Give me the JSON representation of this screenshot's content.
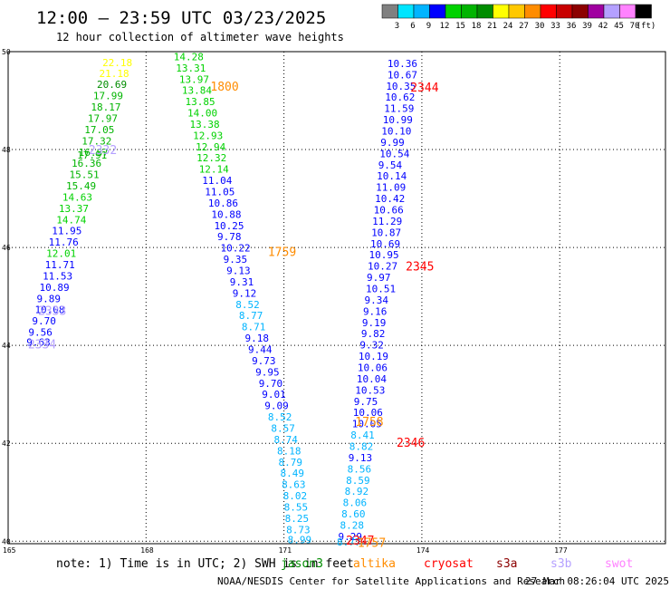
{
  "header": {
    "title": "12:00 – 23:59 UTC 03/23/2025",
    "subtitle": "12 hour collection of altimeter wave heights"
  },
  "colorbar": {
    "labels": [
      "3",
      "6",
      "9",
      "12",
      "15",
      "18",
      "21",
      "24",
      "27",
      "30",
      "33",
      "36",
      "39",
      "42",
      "45",
      "70",
      "(ft)"
    ],
    "colors": [
      "#808080",
      "#00e5ff",
      "#00b4ff",
      "#0000ff",
      "#00d200",
      "#00b400",
      "#008c00",
      "#ffff00",
      "#ffc800",
      "#ff8c00",
      "#ff0000",
      "#c80000",
      "#8c0000",
      "#a000a0",
      "#b4a0ff",
      "#ff82ff",
      "#000000"
    ]
  },
  "footer": {
    "note": "note:  1) Time is in UTC; 2) SWH is in feet",
    "legend": [
      {
        "name": "jason3",
        "color": "#008c00"
      },
      {
        "name": "altika",
        "color": "#ff8c00"
      },
      {
        "name": "cryosat",
        "color": "#ff0000"
      },
      {
        "name": "s3a",
        "color": "#8c0000"
      },
      {
        "name": "s3b",
        "color": "#b4a0ff"
      },
      {
        "name": "swot",
        "color": "#ff82ff"
      }
    ],
    "credit": "NOAA/NESDIS Center for Satellite Applications and Research",
    "timestamp": "27 Mar 08:26:04 UTC 2025"
  },
  "chart_data": {
    "type": "scatter",
    "title": "12:00 – 23:59 UTC 03/23/2025",
    "subtitle": "12 hour collection of altimeter wave heights",
    "xlim": [
      165,
      179.3
    ],
    "ylim": [
      39.95,
      50
    ],
    "x_ticks": [
      165,
      168,
      171,
      174,
      177
    ],
    "y_ticks": [
      40,
      42,
      44,
      46,
      48,
      50
    ],
    "grid": true,
    "legend": "bottom",
    "points": [
      {
        "x": 167.05,
        "y": 49.78,
        "v": "22.18",
        "c": "#ffff00"
      },
      {
        "x": 166.98,
        "y": 49.56,
        "v": "21.18",
        "c": "#ffff00"
      },
      {
        "x": 166.93,
        "y": 49.33,
        "v": "20.69",
        "c": "#008c00"
      },
      {
        "x": 166.85,
        "y": 49.1,
        "v": "17.99",
        "c": "#00b400"
      },
      {
        "x": 166.8,
        "y": 48.87,
        "v": "18.17",
        "c": "#00b400"
      },
      {
        "x": 166.73,
        "y": 48.64,
        "v": "17.97",
        "c": "#00b400"
      },
      {
        "x": 166.66,
        "y": 48.41,
        "v": "17.05",
        "c": "#00b400"
      },
      {
        "x": 166.6,
        "y": 48.18,
        "v": "17.32",
        "c": "#00b400"
      },
      {
        "x": 166.53,
        "y": 47.95,
        "v": "16.87",
        "c": "#00b400"
      },
      {
        "x": 166.5,
        "y": 47.89,
        "v": "17.91",
        "c": "#00b400"
      },
      {
        "x": 166.38,
        "y": 47.72,
        "v": "16.36",
        "c": "#00b400"
      },
      {
        "x": 166.33,
        "y": 47.49,
        "v": "15.51",
        "c": "#00b400"
      },
      {
        "x": 166.26,
        "y": 47.26,
        "v": "15.49",
        "c": "#00b400"
      },
      {
        "x": 166.18,
        "y": 47.03,
        "v": "14.63",
        "c": "#00d200"
      },
      {
        "x": 166.1,
        "y": 46.8,
        "v": "13.37",
        "c": "#00d200"
      },
      {
        "x": 166.05,
        "y": 46.57,
        "v": "14.74",
        "c": "#00d200"
      },
      {
        "x": 165.95,
        "y": 46.34,
        "v": "11.95",
        "c": "#0000ff"
      },
      {
        "x": 165.88,
        "y": 46.11,
        "v": "11.76",
        "c": "#0000ff"
      },
      {
        "x": 165.83,
        "y": 45.88,
        "v": "12.01",
        "c": "#00d200"
      },
      {
        "x": 165.8,
        "y": 45.65,
        "v": "11.71",
        "c": "#0000ff"
      },
      {
        "x": 165.75,
        "y": 45.42,
        "v": "11.53",
        "c": "#0000ff"
      },
      {
        "x": 165.68,
        "y": 45.19,
        "v": "10.89",
        "c": "#0000ff"
      },
      {
        "x": 165.62,
        "y": 44.96,
        "v": "9.89",
        "c": "#0000ff"
      },
      {
        "x": 165.58,
        "y": 44.73,
        "v": "10.08",
        "c": "#0000ff"
      },
      {
        "x": 165.52,
        "y": 44.5,
        "v": "9.70",
        "c": "#0000ff"
      },
      {
        "x": 165.44,
        "y": 44.27,
        "v": "9.56",
        "c": "#0000ff"
      },
      {
        "x": 165.4,
        "y": 44.07,
        "v": "9.63",
        "c": "#0000ff"
      },
      {
        "x": 168.6,
        "y": 49.9,
        "v": "14.28",
        "c": "#00d200"
      },
      {
        "x": 168.65,
        "y": 49.67,
        "v": "13.31",
        "c": "#00d200"
      },
      {
        "x": 168.72,
        "y": 49.44,
        "v": "13.97",
        "c": "#00d200"
      },
      {
        "x": 168.78,
        "y": 49.21,
        "v": "13.84",
        "c": "#00d200"
      },
      {
        "x": 168.85,
        "y": 48.98,
        "v": "13.85",
        "c": "#00d200"
      },
      {
        "x": 168.9,
        "y": 48.75,
        "v": "14.00",
        "c": "#00d200"
      },
      {
        "x": 168.95,
        "y": 48.52,
        "v": "13.38",
        "c": "#00d200"
      },
      {
        "x": 169.02,
        "y": 48.29,
        "v": "12.93",
        "c": "#00d200"
      },
      {
        "x": 169.08,
        "y": 48.06,
        "v": "12.94",
        "c": "#00d200"
      },
      {
        "x": 169.1,
        "y": 47.83,
        "v": "12.32",
        "c": "#00d200"
      },
      {
        "x": 169.15,
        "y": 47.6,
        "v": "12.14",
        "c": "#00d200"
      },
      {
        "x": 169.22,
        "y": 47.37,
        "v": "11.04",
        "c": "#0000ff"
      },
      {
        "x": 169.28,
        "y": 47.14,
        "v": "11.05",
        "c": "#0000ff"
      },
      {
        "x": 169.35,
        "y": 46.91,
        "v": "10.86",
        "c": "#0000ff"
      },
      {
        "x": 169.42,
        "y": 46.68,
        "v": "10.88",
        "c": "#0000ff"
      },
      {
        "x": 169.48,
        "y": 46.45,
        "v": "10.25",
        "c": "#0000ff"
      },
      {
        "x": 169.55,
        "y": 46.22,
        "v": "9.78",
        "c": "#0000ff"
      },
      {
        "x": 169.62,
        "y": 45.99,
        "v": "10.22",
        "c": "#0000ff"
      },
      {
        "x": 169.68,
        "y": 45.76,
        "v": "9.35",
        "c": "#0000ff"
      },
      {
        "x": 169.75,
        "y": 45.53,
        "v": "9.13",
        "c": "#0000ff"
      },
      {
        "x": 169.82,
        "y": 45.3,
        "v": "9.31",
        "c": "#0000ff"
      },
      {
        "x": 169.88,
        "y": 45.07,
        "v": "9.12",
        "c": "#0000ff"
      },
      {
        "x": 169.95,
        "y": 44.84,
        "v": "8.52",
        "c": "#00b4ff"
      },
      {
        "x": 170.02,
        "y": 44.61,
        "v": "8.77",
        "c": "#00b4ff"
      },
      {
        "x": 170.08,
        "y": 44.38,
        "v": "8.71",
        "c": "#00b4ff"
      },
      {
        "x": 170.15,
        "y": 44.15,
        "v": "9.18",
        "c": "#0000ff"
      },
      {
        "x": 170.22,
        "y": 43.92,
        "v": "9.44",
        "c": "#0000ff"
      },
      {
        "x": 170.3,
        "y": 43.69,
        "v": "9.73",
        "c": "#0000ff"
      },
      {
        "x": 170.38,
        "y": 43.46,
        "v": "9.95",
        "c": "#0000ff"
      },
      {
        "x": 170.45,
        "y": 43.23,
        "v": "9.70",
        "c": "#0000ff"
      },
      {
        "x": 170.52,
        "y": 43.0,
        "v": "9.01",
        "c": "#0000ff"
      },
      {
        "x": 170.58,
        "y": 42.77,
        "v": "9.09",
        "c": "#0000ff"
      },
      {
        "x": 170.65,
        "y": 42.54,
        "v": "8.52",
        "c": "#00b4ff"
      },
      {
        "x": 170.72,
        "y": 42.31,
        "v": "8.57",
        "c": "#00b4ff"
      },
      {
        "x": 170.78,
        "y": 42.08,
        "v": "8.74",
        "c": "#00b4ff"
      },
      {
        "x": 170.85,
        "y": 41.85,
        "v": "8.18",
        "c": "#00b4ff"
      },
      {
        "x": 170.88,
        "y": 41.62,
        "v": "8.79",
        "c": "#00b4ff"
      },
      {
        "x": 170.92,
        "y": 41.39,
        "v": "8.49",
        "c": "#00b4ff"
      },
      {
        "x": 170.95,
        "y": 41.16,
        "v": "8.63",
        "c": "#00b4ff"
      },
      {
        "x": 170.98,
        "y": 40.93,
        "v": "8.02",
        "c": "#00b4ff"
      },
      {
        "x": 171.0,
        "y": 40.7,
        "v": "8.55",
        "c": "#00b4ff"
      },
      {
        "x": 171.02,
        "y": 40.47,
        "v": "8.25",
        "c": "#00b4ff"
      },
      {
        "x": 171.05,
        "y": 40.24,
        "v": "8.73",
        "c": "#00b4ff"
      },
      {
        "x": 171.08,
        "y": 40.03,
        "v": "8.99",
        "c": "#00b4ff"
      },
      {
        "x": 173.25,
        "y": 49.76,
        "v": "10.36",
        "c": "#0000ff"
      },
      {
        "x": 173.25,
        "y": 49.53,
        "v": "10.67",
        "c": "#0000ff"
      },
      {
        "x": 173.22,
        "y": 49.3,
        "v": "10.35",
        "c": "#0000ff"
      },
      {
        "x": 173.2,
        "y": 49.07,
        "v": "10.62",
        "c": "#0000ff"
      },
      {
        "x": 173.18,
        "y": 48.84,
        "v": "11.59",
        "c": "#0000ff"
      },
      {
        "x": 173.15,
        "y": 48.61,
        "v": "10.99",
        "c": "#0000ff"
      },
      {
        "x": 173.12,
        "y": 48.38,
        "v": "10.10",
        "c": "#0000ff"
      },
      {
        "x": 173.1,
        "y": 48.15,
        "v": "9.99",
        "c": "#0000ff"
      },
      {
        "x": 173.08,
        "y": 47.92,
        "v": "10.54",
        "c": "#0000ff"
      },
      {
        "x": 173.05,
        "y": 47.69,
        "v": "9.54",
        "c": "#0000ff"
      },
      {
        "x": 173.02,
        "y": 47.46,
        "v": "10.14",
        "c": "#0000ff"
      },
      {
        "x": 173.0,
        "y": 47.23,
        "v": "11.09",
        "c": "#0000ff"
      },
      {
        "x": 172.98,
        "y": 47.0,
        "v": "10.42",
        "c": "#0000ff"
      },
      {
        "x": 172.95,
        "y": 46.77,
        "v": "10.66",
        "c": "#0000ff"
      },
      {
        "x": 172.92,
        "y": 46.54,
        "v": "11.29",
        "c": "#0000ff"
      },
      {
        "x": 172.9,
        "y": 46.31,
        "v": "10.87",
        "c": "#0000ff"
      },
      {
        "x": 172.88,
        "y": 46.08,
        "v": "10.69",
        "c": "#0000ff"
      },
      {
        "x": 172.85,
        "y": 45.85,
        "v": "10.95",
        "c": "#0000ff"
      },
      {
        "x": 172.82,
        "y": 45.62,
        "v": "10.27",
        "c": "#0000ff"
      },
      {
        "x": 172.8,
        "y": 45.39,
        "v": "9.97",
        "c": "#0000ff"
      },
      {
        "x": 172.78,
        "y": 45.16,
        "v": "10.51",
        "c": "#0000ff"
      },
      {
        "x": 172.75,
        "y": 44.93,
        "v": "9.34",
        "c": "#0000ff"
      },
      {
        "x": 172.72,
        "y": 44.7,
        "v": "9.16",
        "c": "#0000ff"
      },
      {
        "x": 172.7,
        "y": 44.47,
        "v": "9.19",
        "c": "#0000ff"
      },
      {
        "x": 172.68,
        "y": 44.24,
        "v": "9.82",
        "c": "#0000ff"
      },
      {
        "x": 172.65,
        "y": 44.01,
        "v": "9.32",
        "c": "#0000ff"
      },
      {
        "x": 172.62,
        "y": 43.78,
        "v": "10.19",
        "c": "#0000ff"
      },
      {
        "x": 172.6,
        "y": 43.55,
        "v": "10.06",
        "c": "#0000ff"
      },
      {
        "x": 172.58,
        "y": 43.32,
        "v": "10.04",
        "c": "#0000ff"
      },
      {
        "x": 172.55,
        "y": 43.09,
        "v": "10.53",
        "c": "#0000ff"
      },
      {
        "x": 172.52,
        "y": 42.86,
        "v": "9.75",
        "c": "#0000ff"
      },
      {
        "x": 172.5,
        "y": 42.63,
        "v": "10.06",
        "c": "#0000ff"
      },
      {
        "x": 172.48,
        "y": 42.4,
        "v": "10.05",
        "c": "#0000ff"
      },
      {
        "x": 172.45,
        "y": 42.17,
        "v": "8.41",
        "c": "#00b4ff"
      },
      {
        "x": 172.42,
        "y": 41.94,
        "v": "8.82",
        "c": "#00b4ff"
      },
      {
        "x": 172.4,
        "y": 41.71,
        "v": "9.13",
        "c": "#0000ff"
      },
      {
        "x": 172.38,
        "y": 41.48,
        "v": "8.56",
        "c": "#00b4ff"
      },
      {
        "x": 172.35,
        "y": 41.25,
        "v": "8.59",
        "c": "#00b4ff"
      },
      {
        "x": 172.32,
        "y": 41.02,
        "v": "8.92",
        "c": "#00b4ff"
      },
      {
        "x": 172.28,
        "y": 40.79,
        "v": "8.06",
        "c": "#00b4ff"
      },
      {
        "x": 172.25,
        "y": 40.56,
        "v": "8.60",
        "c": "#00b4ff"
      },
      {
        "x": 172.22,
        "y": 40.33,
        "v": "8.28",
        "c": "#00b4ff"
      },
      {
        "x": 172.18,
        "y": 40.1,
        "v": "9.29",
        "c": "#0000ff"
      },
      {
        "x": 172.15,
        "y": 39.99,
        "v": "8.77",
        "c": "#00b4ff"
      }
    ],
    "labels": [
      {
        "x": 169.4,
        "y": 49.3,
        "text": "1800",
        "c": "#ff8c00"
      },
      {
        "x": 166.75,
        "y": 48.0,
        "text": "2332",
        "c": "#b4a0ff"
      },
      {
        "x": 170.65,
        "y": 45.92,
        "text": "1759",
        "c": "#ff8c00"
      },
      {
        "x": 165.65,
        "y": 44.72,
        "text": "2333",
        "c": "#b4a0ff"
      },
      {
        "x": 165.43,
        "y": 44.03,
        "text": "2334",
        "c": "#b4a0ff"
      },
      {
        "x": 173.75,
        "y": 49.28,
        "text": "2344",
        "c": "#ff0000"
      },
      {
        "x": 173.65,
        "y": 45.62,
        "text": "2345",
        "c": "#ff0000"
      },
      {
        "x": 172.55,
        "y": 42.45,
        "text": "1758",
        "c": "#ff8c00"
      },
      {
        "x": 173.45,
        "y": 42.02,
        "text": "2346",
        "c": "#ff0000"
      },
      {
        "x": 172.6,
        "y": 39.98,
        "text": "1757",
        "c": "#ff8c00"
      },
      {
        "x": 172.35,
        "y": 40.02,
        "text": "2347",
        "c": "#ff0000"
      }
    ]
  }
}
